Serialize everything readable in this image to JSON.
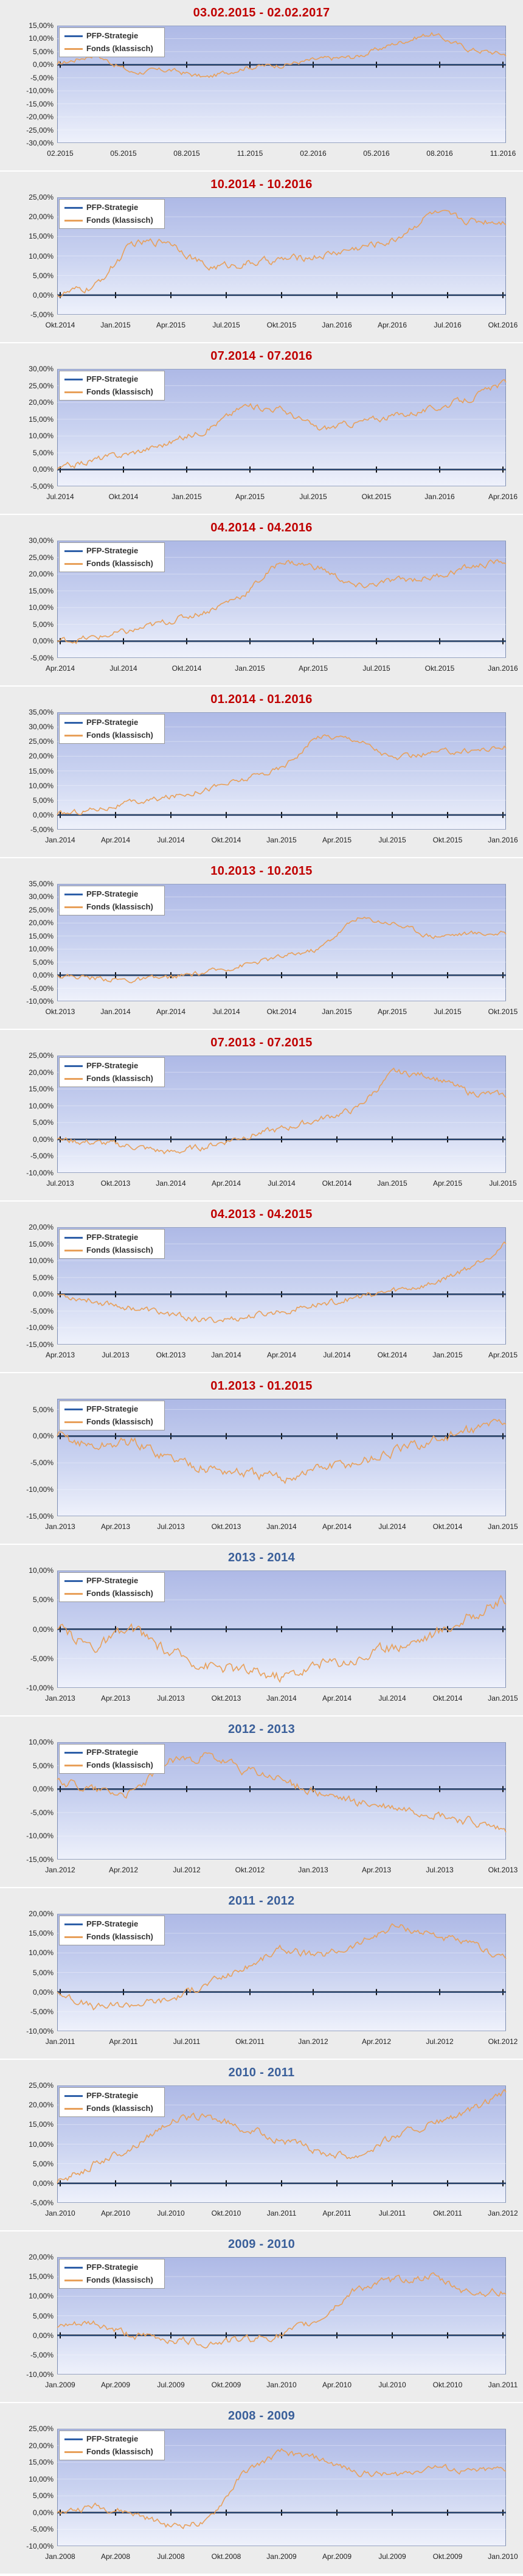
{
  "legend_labels": [
    "PFP-Strategie",
    "Fonds (klassisch)"
  ],
  "colors": {
    "strategy": "#2e5fa8",
    "fund": "#e8a05a",
    "zero_line": "#111111",
    "title_red": "#c00000",
    "title_blue": "#3a5f9a"
  },
  "chart_data": [
    {
      "type": "line",
      "title": "03.02.2015 - 02.02.2017",
      "title_color": "red",
      "y_ticks": [
        "15,00%",
        "10,00%",
        "5,00%",
        "0,00%",
        "-5,00%",
        "-10,00%",
        "-15,00%",
        "-20,00%",
        "-25,00%",
        "-30,00%"
      ],
      "ylim": [
        -30,
        15
      ],
      "x_ticks": [
        "02.2015",
        "05.2015",
        "08.2015",
        "11.2015",
        "02.2016",
        "05.2016",
        "08.2016",
        "11.2016"
      ],
      "series": [
        {
          "name": "PFP-Strategie",
          "values": [
            0,
            0,
            0,
            0,
            0,
            0,
            0,
            0,
            0,
            0,
            0,
            0,
            0
          ]
        },
        {
          "name": "Fonds (klassisch)",
          "values": [
            0,
            4,
            -3,
            -2,
            -5,
            -1,
            0,
            2,
            3,
            8,
            12,
            6,
            4
          ]
        }
      ]
    },
    {
      "type": "line",
      "title": "10.2014 - 10.2016",
      "title_color": "red",
      "y_ticks": [
        "25,00%",
        "20,00%",
        "15,00%",
        "10,00%",
        "5,00%",
        "0,00%",
        "-5,00%"
      ],
      "ylim": [
        -5,
        25
      ],
      "x_ticks": [
        "Okt.2014",
        "Jan.2015",
        "Apr.2015",
        "Jul.2015",
        "Okt.2015",
        "Jan.2016",
        "Apr.2016",
        "Jul.2016",
        "Okt.2016"
      ],
      "series": [
        {
          "name": "PFP-Strategie",
          "values": [
            0,
            0,
            0,
            0,
            0,
            0,
            0,
            0,
            0,
            0,
            0,
            0,
            0
          ]
        },
        {
          "name": "Fonds (klassisch)",
          "values": [
            0,
            2,
            13,
            14,
            7,
            8,
            9,
            10,
            12,
            14,
            21,
            19,
            19
          ]
        }
      ]
    },
    {
      "type": "line",
      "title": "07.2014 - 07.2016",
      "title_color": "red",
      "y_ticks": [
        "30,00%",
        "25,00%",
        "20,00%",
        "15,00%",
        "10,00%",
        "5,00%",
        "0,00%",
        "-5,00%"
      ],
      "ylim": [
        -5,
        30
      ],
      "x_ticks": [
        "Jul.2014",
        "Okt.2014",
        "Jan.2015",
        "Apr.2015",
        "Jul.2015",
        "Okt.2015",
        "Jan.2016",
        "Apr.2016"
      ],
      "series": [
        {
          "name": "PFP-Strategie",
          "values": [
            0,
            0,
            0,
            0,
            0,
            0,
            0,
            0,
            0,
            0,
            0,
            0,
            0
          ]
        },
        {
          "name": "Fonds (klassisch)",
          "values": [
            0,
            3,
            5,
            8,
            12,
            19,
            18,
            12,
            14,
            16,
            18,
            21,
            26
          ]
        }
      ]
    },
    {
      "type": "line",
      "title": "04.2014 - 04.2016",
      "title_color": "red",
      "y_ticks": [
        "30,00%",
        "25,00%",
        "20,00%",
        "15,00%",
        "10,00%",
        "5,00%",
        "0,00%",
        "-5,00%"
      ],
      "ylim": [
        -5,
        30
      ],
      "x_ticks": [
        "Apr.2014",
        "Jul.2014",
        "Okt.2014",
        "Jan.2015",
        "Apr.2015",
        "Jul.2015",
        "Okt.2015",
        "Jan.2016"
      ],
      "series": [
        {
          "name": "PFP-Strategie",
          "values": [
            0,
            0,
            0,
            0,
            0,
            0,
            0,
            0,
            0,
            0,
            0,
            0,
            0
          ]
        },
        {
          "name": "Fonds (klassisch)",
          "values": [
            0,
            1,
            3,
            6,
            9,
            14,
            24,
            22,
            16,
            18,
            19,
            22,
            24
          ]
        }
      ]
    },
    {
      "type": "line",
      "title": "01.2014 - 01.2016",
      "title_color": "red",
      "y_ticks": [
        "35,00%",
        "30,00%",
        "25,00%",
        "20,00%",
        "15,00%",
        "10,00%",
        "5,00%",
        "0,00%",
        "-5,00%"
      ],
      "ylim": [
        -5,
        35
      ],
      "x_ticks": [
        "Jan.2014",
        "Apr.2014",
        "Jul.2014",
        "Okt.2014",
        "Jan.2015",
        "Apr.2015",
        "Jul.2015",
        "Okt.2015",
        "Jan.2016"
      ],
      "series": [
        {
          "name": "PFP-Strategie",
          "values": [
            0,
            0,
            0,
            0,
            0,
            0,
            0,
            0,
            0,
            0,
            0,
            0,
            0
          ]
        },
        {
          "name": "Fonds (klassisch)",
          "values": [
            0,
            2,
            4,
            6,
            9,
            12,
            16,
            27,
            26,
            19,
            21,
            22,
            23
          ]
        }
      ]
    },
    {
      "type": "line",
      "title": "10.2013 - 10.2015",
      "title_color": "red",
      "y_ticks": [
        "35,00%",
        "30,00%",
        "25,00%",
        "20,00%",
        "15,00%",
        "10,00%",
        "5,00%",
        "0,00%",
        "-5,00%",
        "-10,00%"
      ],
      "ylim": [
        -10,
        35
      ],
      "x_ticks": [
        "Okt.2013",
        "Jan.2014",
        "Apr.2014",
        "Jul.2014",
        "Okt.2014",
        "Jan.2015",
        "Apr.2015",
        "Jul.2015",
        "Okt.2015"
      ],
      "series": [
        {
          "name": "PFP-Strategie",
          "values": [
            0,
            0,
            0,
            0,
            0,
            0,
            0,
            0,
            0,
            0,
            0,
            0,
            0
          ]
        },
        {
          "name": "Fonds (klassisch)",
          "values": [
            0,
            -1,
            -2,
            -1,
            1,
            4,
            7,
            10,
            22,
            20,
            15,
            16,
            16
          ]
        }
      ]
    },
    {
      "type": "line",
      "title": "07.2013 - 07.2015",
      "title_color": "red",
      "y_ticks": [
        "25,00%",
        "20,00%",
        "15,00%",
        "10,00%",
        "5,00%",
        "0,00%",
        "-5,00%",
        "-10,00%"
      ],
      "ylim": [
        -10,
        25
      ],
      "x_ticks": [
        "Jul.2013",
        "Okt.2013",
        "Jan.2014",
        "Apr.2014",
        "Jul.2014",
        "Okt.2014",
        "Jan.2015",
        "Apr.2015",
        "Jul.2015"
      ],
      "series": [
        {
          "name": "PFP-Strategie",
          "values": [
            0,
            0,
            0,
            0,
            0,
            0,
            0,
            0,
            0,
            0,
            0,
            0,
            0
          ]
        },
        {
          "name": "Fonds (klassisch)",
          "values": [
            0,
            -1,
            -2,
            -4,
            -2,
            1,
            3,
            6,
            9,
            20,
            19,
            14,
            13
          ]
        }
      ]
    },
    {
      "type": "line",
      "title": "04.2013 - 04.2015",
      "title_color": "red",
      "y_ticks": [
        "20,00%",
        "15,00%",
        "10,00%",
        "5,00%",
        "0,00%",
        "-5,00%",
        "-10,00%",
        "-15,00%"
      ],
      "ylim": [
        -15,
        20
      ],
      "x_ticks": [
        "Apr.2013",
        "Jul.2013",
        "Okt.2013",
        "Jan.2014",
        "Apr.2014",
        "Jul.2014",
        "Okt.2014",
        "Jan.2015",
        "Apr.2015"
      ],
      "series": [
        {
          "name": "PFP-Strategie",
          "values": [
            0,
            0,
            0,
            0,
            0,
            0,
            0,
            0,
            0,
            0,
            0,
            0,
            0
          ]
        },
        {
          "name": "Fonds (klassisch)",
          "values": [
            0,
            -2,
            -4,
            -6,
            -8,
            -7,
            -5,
            -3,
            -1,
            1,
            3,
            8,
            15
          ]
        }
      ]
    },
    {
      "type": "line",
      "title": "01.2013 - 01.2015",
      "title_color": "red",
      "y_ticks": [
        "5,00%",
        "0,00%",
        "-5,00%",
        "-10,00%",
        "-15,00%"
      ],
      "ylim": [
        -15,
        7
      ],
      "x_ticks": [
        "Jan.2013",
        "Apr.2013",
        "Jul.2013",
        "Okt.2013",
        "Jan.2014",
        "Apr.2014",
        "Jul.2014",
        "Okt.2014",
        "Jan.2015"
      ],
      "series": [
        {
          "name": "PFP-Strategie",
          "values": [
            0,
            0,
            0,
            0,
            0,
            0,
            0,
            0,
            0,
            0,
            0,
            0,
            0
          ]
        },
        {
          "name": "Fonds (klassisch)",
          "values": [
            0,
            -2,
            -1,
            -4,
            -6,
            -7,
            -8,
            -6,
            -5,
            -3,
            -1,
            1,
            3
          ]
        }
      ]
    },
    {
      "type": "line",
      "title": "2013 - 2014",
      "title_color": "blue",
      "y_ticks": [
        "10,00%",
        "5,00%",
        "0,00%",
        "-5,00%",
        "-10,00%"
      ],
      "ylim": [
        -10,
        10
      ],
      "x_ticks": [
        "Jan.2013",
        "Apr.2013",
        "Jul.2013",
        "Okt.2013",
        "Jan.2014",
        "Apr.2014",
        "Jul.2014",
        "Okt.2014",
        "Jan.2015"
      ],
      "series": [
        {
          "name": "PFP-Strategie",
          "values": [
            0,
            0,
            0,
            0,
            0,
            0,
            0,
            0,
            0,
            0,
            0,
            0,
            0
          ]
        },
        {
          "name": "Fonds (klassisch)",
          "values": [
            0,
            -3,
            0,
            -4,
            -6,
            -7,
            -8,
            -6,
            -5,
            -3,
            -1,
            2,
            5
          ]
        }
      ]
    },
    {
      "type": "line",
      "title": "2012 - 2013",
      "title_color": "blue",
      "y_ticks": [
        "10,00%",
        "5,00%",
        "0,00%",
        "-5,00%",
        "-10,00%",
        "-15,00%"
      ],
      "ylim": [
        -15,
        10
      ],
      "x_ticks": [
        "Jan.2012",
        "Apr.2012",
        "Jul.2012",
        "Okt.2012",
        "Jan.2013",
        "Apr.2013",
        "Jul.2013",
        "Okt.2013"
      ],
      "series": [
        {
          "name": "PFP-Strategie",
          "values": [
            0,
            0,
            0,
            0,
            0,
            0,
            0,
            0,
            0,
            0,
            0,
            0,
            0
          ]
        },
        {
          "name": "Fonds (klassisch)",
          "values": [
            2,
            0,
            -1,
            6,
            7,
            4,
            2,
            -1,
            -3,
            -4,
            -5,
            -7,
            -9
          ]
        }
      ]
    },
    {
      "type": "line",
      "title": "2011 - 2012",
      "title_color": "blue",
      "y_ticks": [
        "20,00%",
        "15,00%",
        "10,00%",
        "5,00%",
        "0,00%",
        "-5,00%",
        "-10,00%"
      ],
      "ylim": [
        -10,
        20
      ],
      "x_ticks": [
        "Jan.2011",
        "Apr.2011",
        "Jul.2011",
        "Okt.2011",
        "Jan.2012",
        "Apr.2012",
        "Jul.2012",
        "Okt.2012"
      ],
      "series": [
        {
          "name": "PFP-Strategie",
          "values": [
            0,
            0,
            0,
            0,
            0,
            0,
            0,
            0,
            0,
            0,
            0,
            0,
            0
          ]
        },
        {
          "name": "Fonds (klassisch)",
          "values": [
            0,
            -4,
            -3,
            -2,
            2,
            6,
            11,
            9,
            12,
            17,
            15,
            12,
            9
          ]
        }
      ]
    },
    {
      "type": "line",
      "title": "2010 - 2011",
      "title_color": "blue",
      "y_ticks": [
        "25,00%",
        "20,00%",
        "15,00%",
        "10,00%",
        "5,00%",
        "0,00%",
        "-5,00%"
      ],
      "ylim": [
        -5,
        25
      ],
      "x_ticks": [
        "Jan.2010",
        "Apr.2010",
        "Jul.2010",
        "Okt.2010",
        "Jan.2011",
        "Apr.2011",
        "Jul.2011",
        "Okt.2011",
        "Jan.2012"
      ],
      "series": [
        {
          "name": "PFP-Strategie",
          "values": [
            0,
            0,
            0,
            0,
            0,
            0,
            0,
            0,
            0,
            0,
            0,
            0,
            0
          ]
        },
        {
          "name": "Fonds (klassisch)",
          "values": [
            0,
            5,
            9,
            16,
            17,
            14,
            11,
            8,
            7,
            12,
            15,
            18,
            23
          ]
        }
      ]
    },
    {
      "type": "line",
      "title": "2009 - 2010",
      "title_color": "blue",
      "y_ticks": [
        "20,00%",
        "15,00%",
        "10,00%",
        "5,00%",
        "0,00%",
        "-5,00%",
        "-10,00%"
      ],
      "ylim": [
        -10,
        20
      ],
      "x_ticks": [
        "Jan.2009",
        "Apr.2009",
        "Jul.2009",
        "Okt.2009",
        "Jan.2010",
        "Apr.2010",
        "Jul.2010",
        "Okt.2010",
        "Jan.2011"
      ],
      "series": [
        {
          "name": "PFP-Strategie",
          "values": [
            0,
            0,
            0,
            0,
            0,
            0,
            0,
            0,
            0,
            0,
            0,
            0,
            0
          ]
        },
        {
          "name": "Fonds (klassisch)",
          "values": [
            2,
            3,
            0,
            -1,
            -2,
            -1,
            0,
            4,
            12,
            14,
            15,
            11,
            11
          ]
        }
      ]
    },
    {
      "type": "line",
      "title": "2008 - 2009",
      "title_color": "blue",
      "y_ticks": [
        "25,00%",
        "20,00%",
        "15,00%",
        "10,00%",
        "5,00%",
        "0,00%",
        "-5,00%",
        "-10,00%"
      ],
      "ylim": [
        -10,
        25
      ],
      "x_ticks": [
        "Jan.2008",
        "Apr.2008",
        "Jul.2008",
        "Okt.2008",
        "Jan.2009",
        "Apr.2009",
        "Jul.2009",
        "Okt.2009",
        "Jan.2010"
      ],
      "series": [
        {
          "name": "PFP-Strategie",
          "values": [
            0,
            0,
            0,
            0,
            0,
            0,
            0,
            0,
            0,
            0,
            0,
            0,
            0
          ]
        },
        {
          "name": "Fonds (klassisch)",
          "values": [
            0,
            2,
            0,
            -4,
            -3,
            12,
            18,
            16,
            12,
            11,
            14,
            12,
            13
          ]
        }
      ]
    }
  ]
}
